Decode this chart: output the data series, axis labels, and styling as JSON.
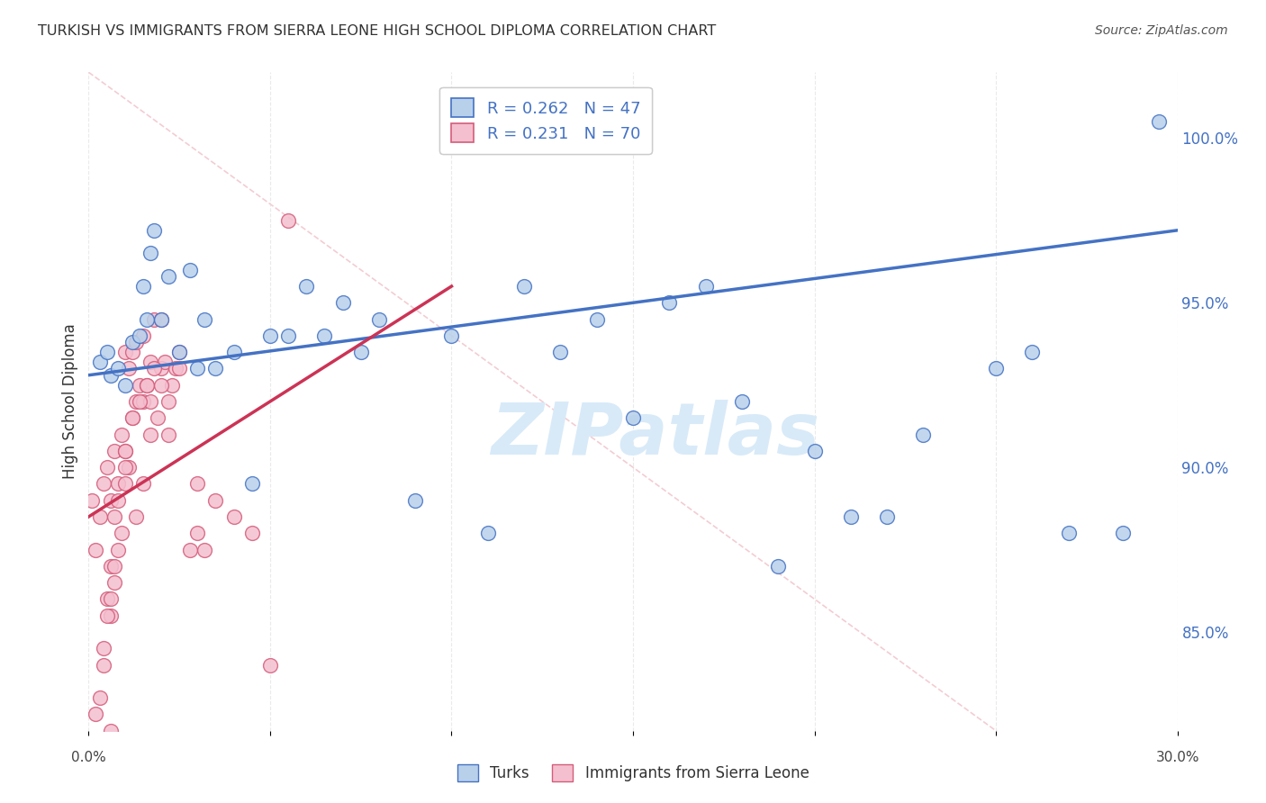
{
  "title": "TURKISH VS IMMIGRANTS FROM SIERRA LEONE HIGH SCHOOL DIPLOMA CORRELATION CHART",
  "source": "Source: ZipAtlas.com",
  "ylabel": "High School Diploma",
  "legend_label_turks": "Turks",
  "legend_label_sierra": "Immigrants from Sierra Leone",
  "r_turks": 0.262,
  "n_turks": 47,
  "r_sierra": 0.231,
  "n_sierra": 70,
  "xmin": 0.0,
  "xmax": 30.0,
  "ymin": 82.0,
  "ymax": 102.0,
  "yticks": [
    85.0,
    90.0,
    95.0,
    100.0
  ],
  "ytick_labels": [
    "85.0%",
    "90.0%",
    "95.0%",
    "100.0%"
  ],
  "color_turks_fill": "#b8d0ea",
  "color_turks_edge": "#4472c4",
  "color_sierra_fill": "#f4bfcf",
  "color_sierra_edge": "#d45c7a",
  "color_turks_line": "#4472c4",
  "color_sierra_line": "#cc3355",
  "color_diagonal": "#e0b0b8",
  "color_r_values": "#4472c4",
  "color_ylabel": "#333333",
  "watermark_color": "#d8eaf8",
  "background_color": "#ffffff",
  "scatter_turks_x": [
    0.3,
    0.5,
    0.6,
    0.8,
    1.0,
    1.2,
    1.4,
    1.5,
    1.6,
    1.7,
    1.8,
    2.0,
    2.2,
    2.5,
    2.8,
    3.0,
    3.2,
    3.5,
    4.0,
    4.5,
    5.0,
    5.5,
    6.0,
    6.5,
    7.0,
    7.5,
    8.0,
    9.0,
    10.0,
    11.0,
    12.0,
    13.0,
    14.0,
    15.0,
    16.0,
    17.0,
    18.0,
    19.0,
    20.0,
    21.0,
    22.0,
    23.0,
    25.0,
    26.0,
    27.0,
    28.5,
    29.5
  ],
  "scatter_turks_y": [
    93.2,
    93.5,
    92.8,
    93.0,
    92.5,
    93.8,
    94.0,
    95.5,
    94.5,
    96.5,
    97.2,
    94.5,
    95.8,
    93.5,
    96.0,
    93.0,
    94.5,
    93.0,
    93.5,
    89.5,
    94.0,
    94.0,
    95.5,
    94.0,
    95.0,
    93.5,
    94.5,
    89.0,
    94.0,
    88.0,
    95.5,
    93.5,
    94.5,
    91.5,
    95.0,
    95.5,
    92.0,
    87.0,
    90.5,
    88.5,
    88.5,
    91.0,
    93.0,
    93.5,
    88.0,
    88.0,
    100.5
  ],
  "scatter_sierra_x": [
    0.1,
    0.2,
    0.2,
    0.3,
    0.3,
    0.4,
    0.4,
    0.5,
    0.5,
    0.6,
    0.6,
    0.6,
    0.7,
    0.7,
    0.7,
    0.8,
    0.8,
    0.9,
    0.9,
    1.0,
    1.0,
    1.0,
    1.1,
    1.1,
    1.2,
    1.2,
    1.3,
    1.3,
    1.4,
    1.5,
    1.5,
    1.5,
    1.6,
    1.7,
    1.7,
    1.8,
    1.9,
    2.0,
    2.0,
    2.1,
    2.2,
    2.3,
    2.4,
    2.5,
    2.8,
    3.0,
    3.5,
    4.0,
    4.5,
    5.0,
    0.5,
    0.6,
    0.8,
    1.0,
    1.2,
    1.4,
    1.6,
    1.8,
    2.2,
    3.2,
    0.4,
    0.7,
    1.0,
    1.3,
    1.7,
    2.0,
    2.5,
    3.0,
    0.6,
    5.5
  ],
  "scatter_sierra_y": [
    89.0,
    82.5,
    87.5,
    83.0,
    88.5,
    84.5,
    89.5,
    86.0,
    90.0,
    85.5,
    87.0,
    89.0,
    86.5,
    88.5,
    90.5,
    87.5,
    89.5,
    88.0,
    91.0,
    89.5,
    90.5,
    93.5,
    90.0,
    93.0,
    91.5,
    93.5,
    92.0,
    93.8,
    92.5,
    89.5,
    92.0,
    94.0,
    92.5,
    93.2,
    92.0,
    94.5,
    91.5,
    93.0,
    94.5,
    93.2,
    91.0,
    92.5,
    93.0,
    93.5,
    87.5,
    89.5,
    89.0,
    88.5,
    88.0,
    84.0,
    85.5,
    86.0,
    89.0,
    90.0,
    91.5,
    92.0,
    92.5,
    93.0,
    92.0,
    87.5,
    84.0,
    87.0,
    90.5,
    88.5,
    91.0,
    92.5,
    93.0,
    88.0,
    82.0,
    97.5
  ],
  "turks_line_x0": 0.0,
  "turks_line_y0": 92.8,
  "turks_line_x1": 30.0,
  "turks_line_y1": 97.2,
  "sierra_line_x0": 0.0,
  "sierra_line_y0": 88.5,
  "sierra_line_x1": 10.0,
  "sierra_line_y1": 95.5
}
